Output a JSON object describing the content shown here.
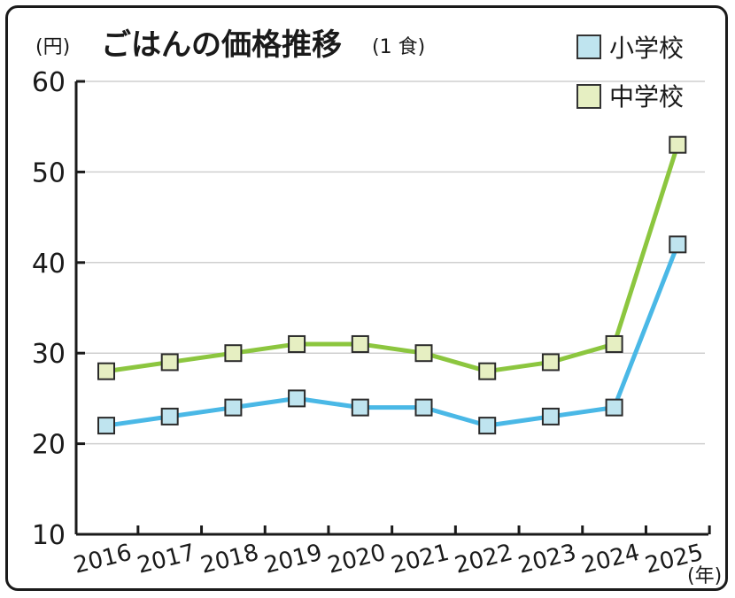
{
  "chart_data": {
    "type": "line",
    "title": "ごはんの価格推移",
    "title_note": "(1 食)",
    "y_unit": "(円)",
    "x_unit": "(年)",
    "categories": [
      "2016",
      "2017",
      "2018",
      "2019",
      "2020",
      "2021",
      "2022",
      "2023",
      "2024",
      "2025"
    ],
    "ylim": [
      10,
      60
    ],
    "yticks": [
      "10",
      "20",
      "30",
      "40",
      "50",
      "60"
    ],
    "grid": true,
    "legend_position": "top-right",
    "series": [
      {
        "name": "小学校",
        "values": [
          22,
          23,
          24,
          25,
          24,
          24,
          22,
          23,
          24,
          42
        ],
        "line_color": "#4ab8e6",
        "marker_color": "#bfe4ef"
      },
      {
        "name": "中学校",
        "values": [
          28,
          29,
          30,
          31,
          31,
          30,
          28,
          29,
          31,
          53
        ],
        "line_color": "#8cc63f",
        "marker_color": "#e6efc2"
      }
    ]
  }
}
